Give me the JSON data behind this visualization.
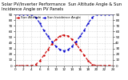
{
  "title": "Solar PV/Inverter Performance  Sun Altitude Angle & Sun Incidence Angle on PV Panels",
  "bg_color": "#ffffff",
  "plot_bg": "#ffffff",
  "grid_color": "#bbbbbb",
  "blue_color": "#0000cc",
  "red_color": "#cc0000",
  "x_values": [
    0,
    1,
    2,
    3,
    4,
    5,
    6,
    7,
    8,
    9,
    10,
    11,
    12,
    13,
    14,
    15,
    16,
    17,
    18,
    19,
    20,
    21,
    22,
    23,
    24
  ],
  "altitude_values": [
    0,
    0,
    0,
    0,
    0,
    2,
    8,
    18,
    28,
    38,
    46,
    52,
    54,
    52,
    46,
    38,
    28,
    18,
    8,
    2,
    0,
    0,
    0,
    0,
    0
  ],
  "incidence_values": [
    90,
    90,
    90,
    90,
    90,
    85,
    75,
    62,
    52,
    42,
    34,
    28,
    26,
    28,
    34,
    42,
    52,
    62,
    75,
    85,
    90,
    90,
    90,
    90,
    90
  ],
  "ylim": [
    0,
    90
  ],
  "xlim": [
    0,
    24
  ],
  "title_fontsize": 3.8,
  "tick_fontsize": 3.0,
  "legend_labels": [
    "Sun Altitude",
    "Sun Incidence Angle"
  ],
  "legend_colors": [
    "#cc0000",
    "#0000cc"
  ],
  "yticks": [
    0,
    10,
    20,
    30,
    40,
    50,
    60,
    70,
    80,
    90
  ],
  "xticks": [
    0,
    2,
    4,
    6,
    8,
    10,
    12,
    14,
    16,
    18,
    20,
    22,
    24
  ]
}
